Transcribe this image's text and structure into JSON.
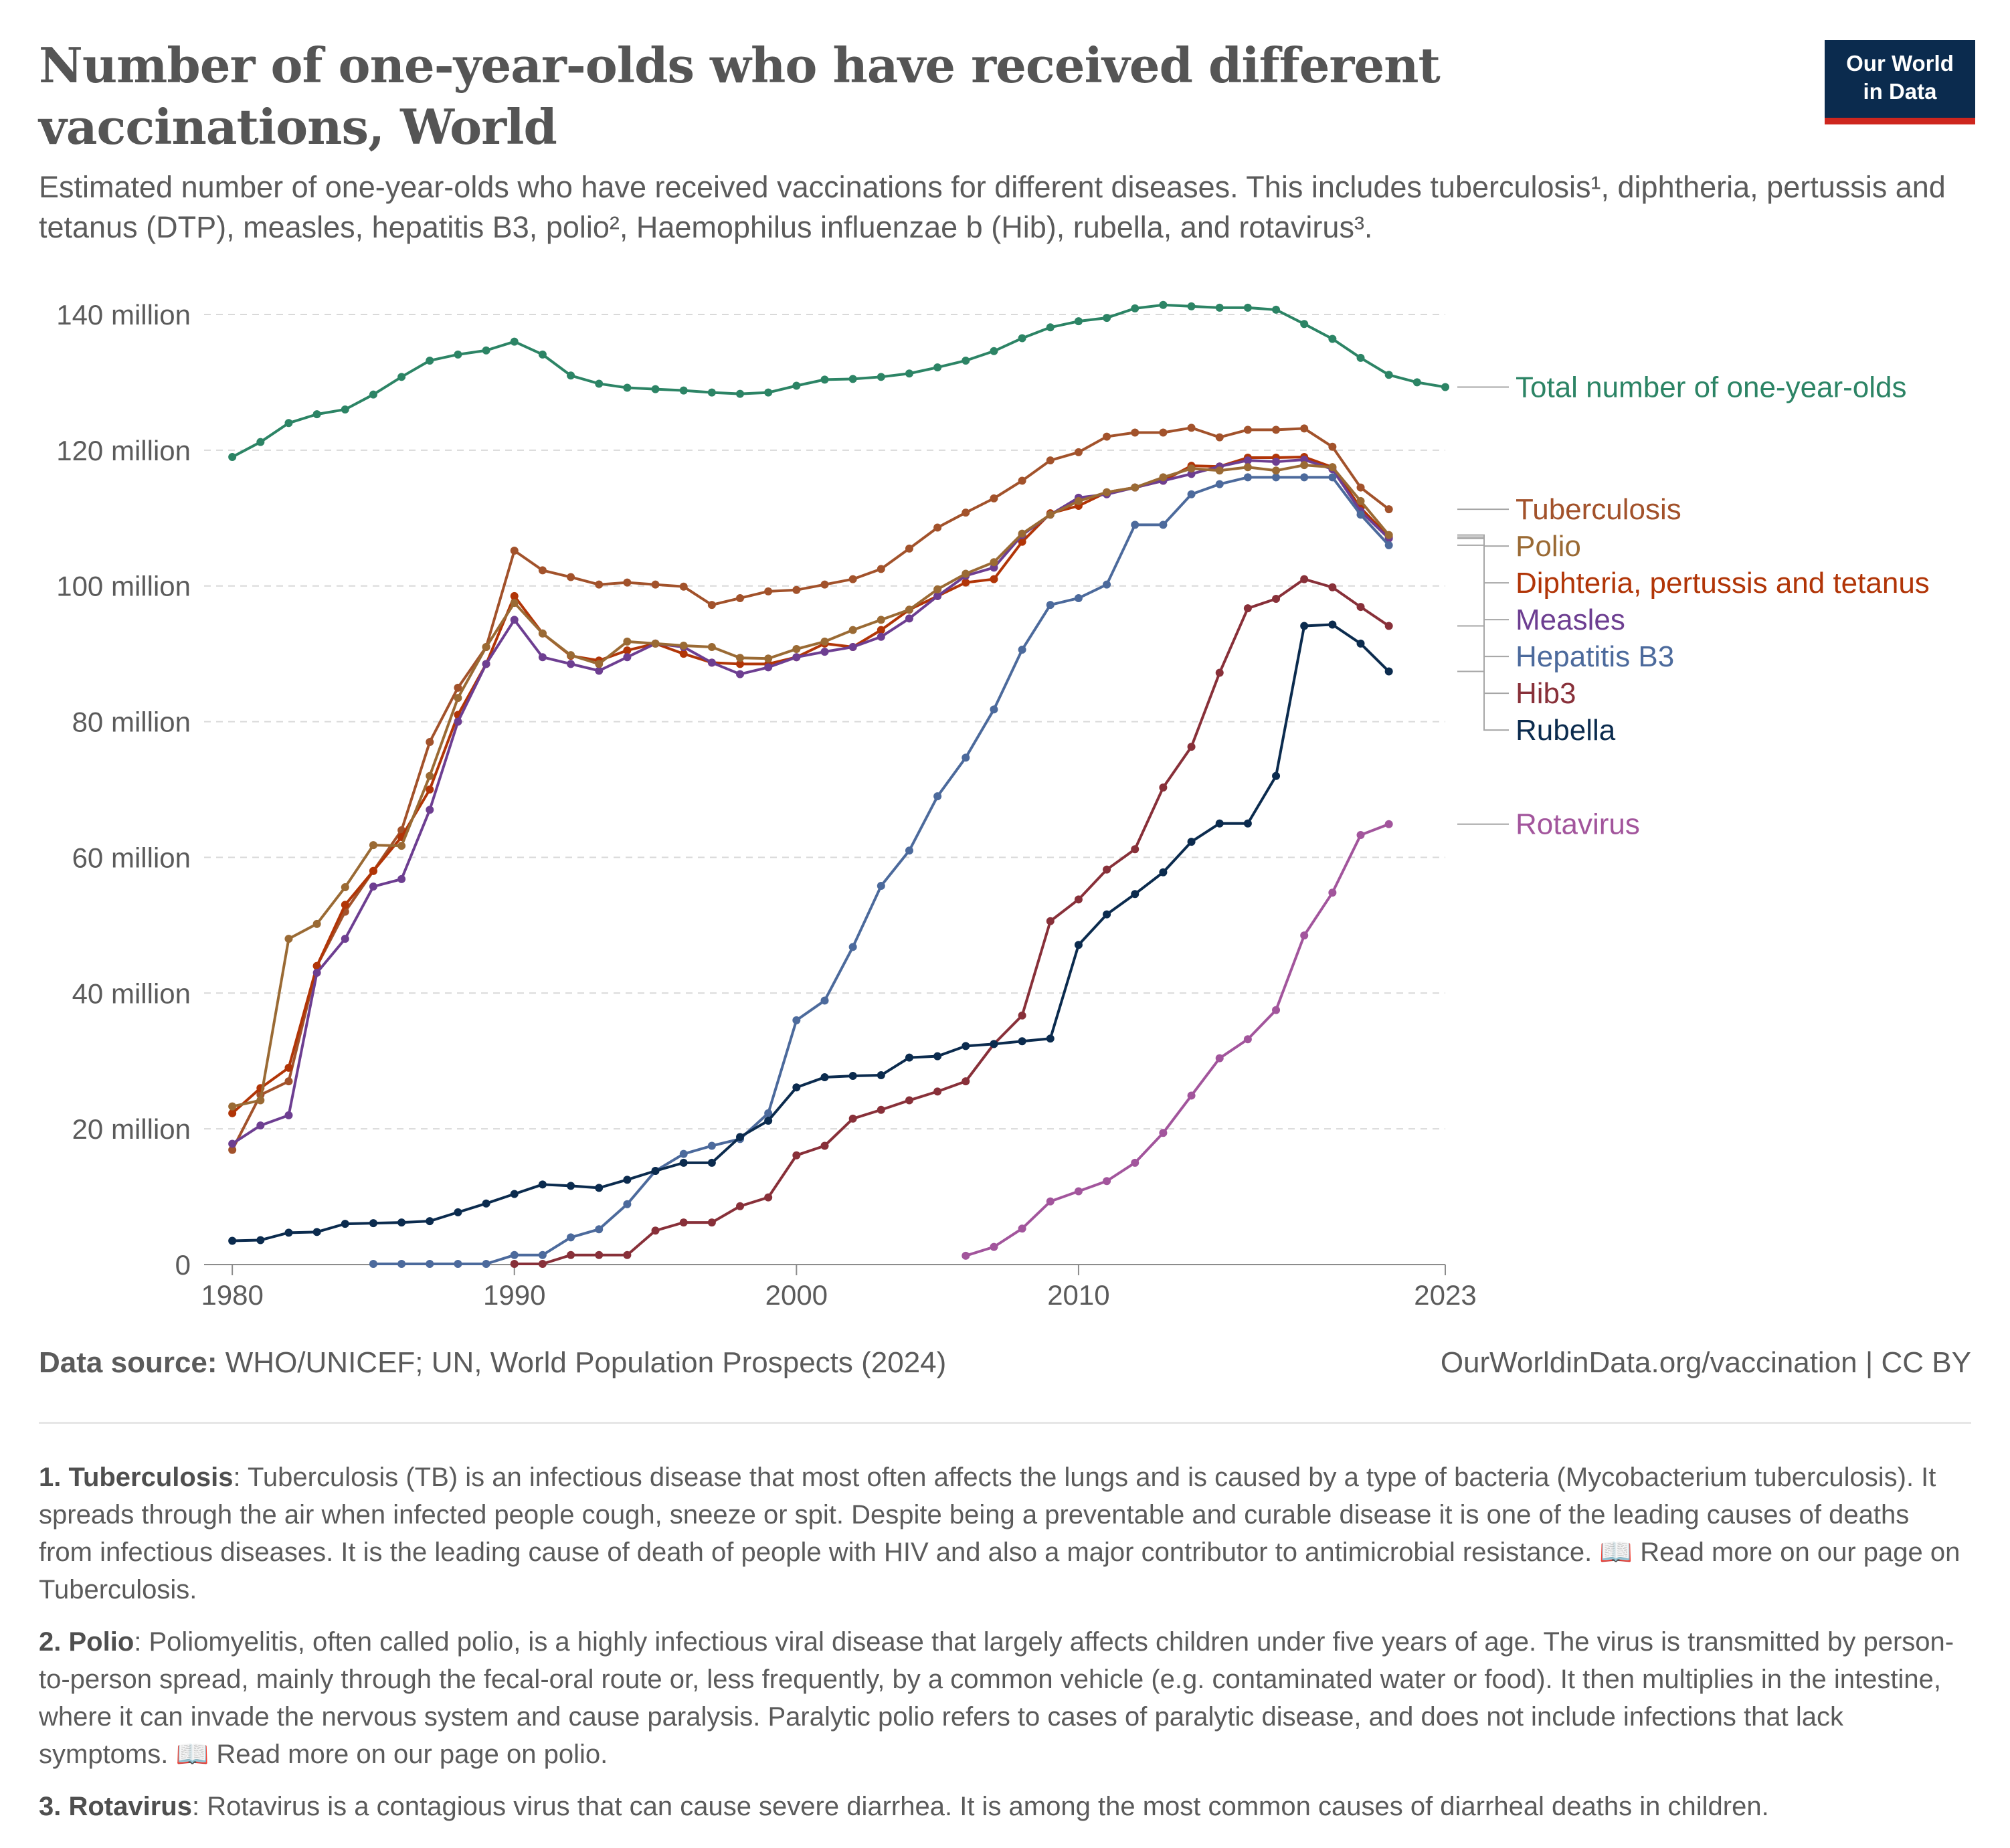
{
  "header": {
    "title": "Number of one-year-olds who have received different vaccinations, World",
    "subtitle": "Estimated number of one-year-olds who have received vaccinations for different diseases. This includes tuberculosis¹, diphtheria, pertussis and tetanus (DTP), measles, hepatitis B3, polio², Haemophilus influenzae b (Hib), rubella, and rotavirus³.",
    "logo_line1": "Our World",
    "logo_line2": "in Data"
  },
  "footer": {
    "source_label": "Data source:",
    "source_text": "WHO/UNICEF; UN, World Population Prospects (2024)",
    "url": "OurWorldinData.org/vaccination | CC BY"
  },
  "notes": [
    {
      "label": "1. Tuberculosis",
      "text": ": Tuberculosis (TB) is an infectious disease that most often affects the lungs and is caused by a type of bacteria (Mycobacterium tuberculosis). It spreads through the air when infected people cough, sneeze or spit. Despite being a preventable and curable disease it is one of the leading causes of deaths from infectious diseases. It is the leading cause of death of people with HIV and also a major contributor to antimicrobial resistance. 📖 Read more on our page on Tuberculosis."
    },
    {
      "label": "2. Polio",
      "text": ": Poliomyelitis, often called polio, is a highly infectious viral disease that largely affects children under five years of age. The virus is transmitted by person-to-person spread, mainly through the fecal-oral route or, less frequently, by a common vehicle (e.g. contaminated water or food). It then multiplies in the intestine, where it can invade the nervous system and cause paralysis. Paralytic polio refers to cases of paralytic disease, and does not include infections that lack symptoms. 📖 Read more on our page on polio."
    },
    {
      "label": "3. Rotavirus",
      "text": ": Rotavirus is a contagious virus that can cause severe diarrhea. It is among the most common causes of diarrheal deaths in children."
    }
  ],
  "chart_data": {
    "type": "line",
    "title": "Number of one-year-olds who have received different vaccinations, World",
    "xlim": [
      1980,
      2023
    ],
    "ylim": [
      0,
      140
    ],
    "y_unit": "million",
    "y_ticks": [
      0,
      20,
      40,
      60,
      80,
      100,
      120,
      140
    ],
    "y_tick_labels": [
      "0",
      "20 million",
      "40 million",
      "60 million",
      "80 million",
      "100 million",
      "120 million",
      "140 million"
    ],
    "x_ticks": [
      1980,
      1990,
      2000,
      2010,
      2023
    ],
    "x_tick_labels": [
      "1980",
      "1990",
      "2000",
      "2010",
      "2023"
    ],
    "grid": "horizontal dashed",
    "legend": "line-end labels on right",
    "series": [
      {
        "name": "Total number of one-year-olds",
        "color": "#2c8465",
        "start": 1980,
        "values": [
          119.0,
          121.2,
          124.0,
          125.3,
          126.0,
          128.2,
          130.8,
          133.2,
          134.1,
          134.7,
          136.0,
          134.1,
          131.0,
          129.8,
          129.2,
          129.0,
          128.8,
          128.5,
          128.3,
          128.5,
          129.5,
          130.4,
          130.5,
          130.8,
          131.3,
          132.2,
          133.2,
          134.6,
          136.5,
          138.1,
          139.0,
          139.5,
          140.9,
          141.4,
          141.2,
          141.0,
          141.0,
          140.7,
          138.6,
          136.4,
          133.6,
          131.1,
          130.0,
          129.3
        ]
      },
      {
        "name": "Tuberculosis",
        "color": "#a2522b",
        "start": 1980,
        "values": [
          16.9,
          25.0,
          27.0,
          44.0,
          52.0,
          58.0,
          64.0,
          77.0,
          85.0,
          91.0,
          105.2,
          102.3,
          101.3,
          100.2,
          100.5,
          100.2,
          99.9,
          97.2,
          98.2,
          99.2,
          99.4,
          100.2,
          101.0,
          102.5,
          105.5,
          108.6,
          110.8,
          112.9,
          115.5,
          118.5,
          119.7,
          122.0,
          122.6,
          122.6,
          123.3,
          121.9,
          123.0,
          123.0,
          123.2,
          120.5,
          114.5,
          111.3
        ]
      },
      {
        "name": "Diphteria, pertussis and tetanus",
        "color": "#b13507",
        "start": 1980,
        "values": [
          22.3,
          26.0,
          29.0,
          44.0,
          53.0,
          58.0,
          63.0,
          70.0,
          81.0,
          88.5,
          98.5,
          93.0,
          89.7,
          89.0,
          90.5,
          91.5,
          90.0,
          88.7,
          88.5,
          88.5,
          89.5,
          91.5,
          91.0,
          93.5,
          96.5,
          98.5,
          100.5,
          101.0,
          106.5,
          110.7,
          111.8,
          113.8,
          114.5,
          115.5,
          117.7,
          117.6,
          118.9,
          118.9,
          119.0,
          117.5,
          111.5,
          107.2
        ]
      },
      {
        "name": "Measles",
        "color": "#6d3e91",
        "start": 1980,
        "values": [
          17.8,
          20.5,
          22.0,
          43.0,
          48.0,
          55.7,
          56.8,
          67.0,
          80.0,
          88.5,
          95.0,
          89.5,
          88.5,
          87.5,
          89.5,
          91.5,
          91.0,
          88.7,
          87.0,
          88.0,
          89.5,
          90.3,
          91.0,
          92.5,
          95.2,
          98.5,
          101.5,
          102.7,
          107.5,
          110.5,
          113.0,
          113.5,
          114.5,
          115.5,
          116.5,
          117.6,
          118.5,
          118.3,
          118.6,
          117.2,
          111.0,
          107.0
        ]
      },
      {
        "name": "Hepatitis B3",
        "color": "#4c6a9c",
        "start": 1985,
        "values": [
          0.1,
          0.1,
          0.1,
          0.1,
          0.1,
          1.4,
          1.4,
          4.0,
          5.2,
          8.9,
          13.8,
          16.3,
          17.5,
          18.5,
          22.3,
          36.0,
          38.9,
          46.8,
          55.8,
          61.0,
          69.0,
          74.7,
          81.8,
          90.6,
          97.2,
          98.2,
          100.2,
          109.0,
          109.0,
          113.5,
          115.0,
          116.0,
          116.0,
          116.0,
          116.0,
          110.5,
          106.0
        ]
      },
      {
        "name": "Polio",
        "color": "#9a6a34",
        "start": 1980,
        "values": [
          23.3,
          24.2,
          48.0,
          50.2,
          55.6,
          61.8,
          61.7,
          72.0,
          83.5,
          91.0,
          97.5,
          93.0,
          89.8,
          88.5,
          91.8,
          91.5,
          91.2,
          91.0,
          89.4,
          89.3,
          90.7,
          91.8,
          93.5,
          95.0,
          96.5,
          99.5,
          101.8,
          103.5,
          107.7,
          110.5,
          112.5,
          113.8,
          114.5,
          116.0,
          117.3,
          117.0,
          117.5,
          117.0,
          117.8,
          117.5,
          112.5,
          107.5
        ]
      },
      {
        "name": "Hib3",
        "color": "#883039",
        "start": 1990,
        "values": [
          0.1,
          0.1,
          1.4,
          1.4,
          1.4,
          5.0,
          6.2,
          6.2,
          8.6,
          9.9,
          16.1,
          17.5,
          21.5,
          22.8,
          24.2,
          25.5,
          27.0,
          32.5,
          36.7,
          50.6,
          53.8,
          58.2,
          61.2,
          70.3,
          76.3,
          87.2,
          96.7,
          98.1,
          101.0,
          99.8,
          96.9,
          94.1
        ]
      },
      {
        "name": "Rubella",
        "color": "#0b2b4e",
        "start": 1980,
        "values": [
          3.5,
          3.6,
          4.7,
          4.8,
          6.0,
          6.1,
          6.2,
          6.4,
          7.7,
          9.0,
          10.4,
          11.8,
          11.6,
          11.3,
          12.5,
          13.8,
          15.0,
          15.0,
          18.8,
          21.2,
          26.1,
          27.6,
          27.8,
          27.9,
          30.5,
          30.7,
          32.2,
          32.5,
          32.9,
          33.3,
          47.1,
          51.6,
          54.6,
          57.8,
          62.3,
          65.0,
          65.0,
          72.0,
          94.1,
          94.3,
          91.5,
          87.4
        ]
      },
      {
        "name": "Rotavirus",
        "color": "#a2559c",
        "start": 2006,
        "values": [
          1.3,
          2.6,
          5.3,
          9.3,
          10.8,
          12.3,
          15.0,
          19.4,
          24.9,
          30.4,
          33.2,
          37.5,
          48.5,
          54.8,
          63.3,
          64.9
        ]
      }
    ]
  }
}
